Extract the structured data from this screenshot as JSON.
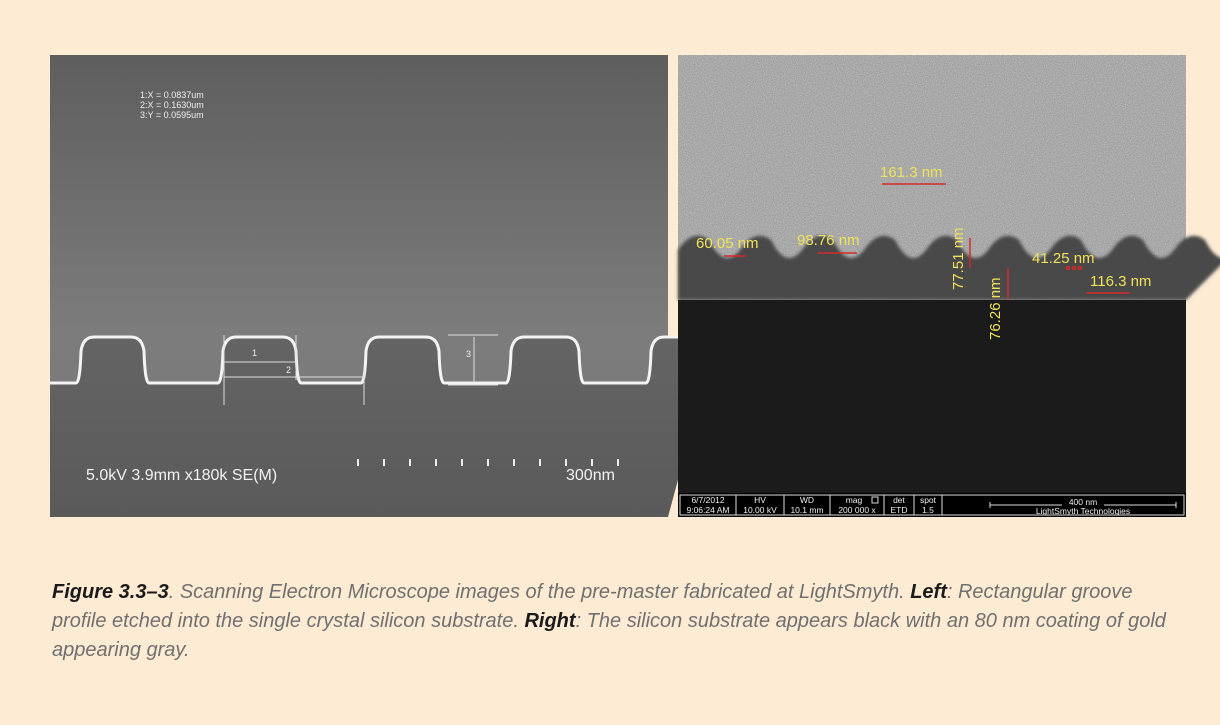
{
  "left_image": {
    "measurements": [
      "1:X = 0.0837um",
      "2:X = 0.1630um",
      "3:Y = 0.0595um"
    ],
    "markers": [
      "1",
      "2",
      "3"
    ],
    "info": "5.0kV 3.9mm x180k SE(M)",
    "scale_label": "300nm"
  },
  "right_image": {
    "labels": [
      "161.3 nm",
      "60.05 nm",
      "98.76 nm",
      "77.51 nm",
      "76.26 nm",
      "41.25 nm",
      "116.3 nm"
    ],
    "info_bar": {
      "date": "6/7/2012",
      "time": "9:06:24 AM",
      "hv_label": "HV",
      "hv": "10.00 kV",
      "wd_label": "WD",
      "wd": "10.1 mm",
      "mag_label": "mag",
      "mag": "200 000 x",
      "det_label": "det",
      "det": "ETD",
      "spot_label": "spot",
      "spot": "1.5",
      "scale_label": "400 nm",
      "company": "LightSmyth Technologies"
    }
  },
  "caption": {
    "figure": "Figure 3.3–3",
    "text1": ". Scanning Electron Microscope images of the pre-master fabricated at LightSmyth. ",
    "left": "Left",
    "text2": ": Rectangular groove profile etched into the single crystal silicon substrate. ",
    "right": "Right",
    "text3": ": The silicon substrate appears black with an 80 nm coating of gold appearing gray."
  }
}
